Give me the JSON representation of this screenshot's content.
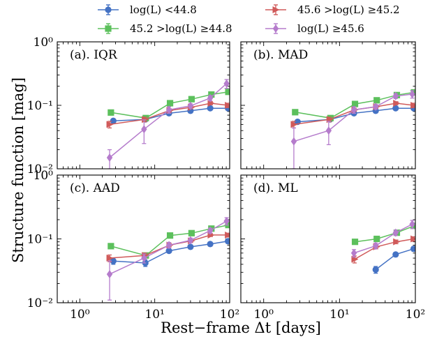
{
  "figure": {
    "xlabel": "Rest−frame Δt [days]",
    "ylabel": "Structure function [mag]"
  },
  "legend": [
    {
      "label": "log(L) <44.8",
      "color": "#4472c4",
      "marker": "circle"
    },
    {
      "label": "45.6 >log(L) ≥45.2",
      "color": "#d05a5a",
      "marker": "triangle-right"
    },
    {
      "label": "45.2 >log(L) ≥44.8",
      "color": "#5cc05c",
      "marker": "square"
    },
    {
      "label": "log(L) ≥45.6",
      "color": "#b57ccc",
      "marker": "diamond"
    }
  ],
  "axes": {
    "x_ticks": [
      "10⁰",
      "10¹",
      "10²"
    ],
    "y_ticks": [
      "10⁰",
      "10⁻¹",
      "10⁻²"
    ]
  },
  "chart_data": [
    {
      "type": "line",
      "panel": "(a). IQR",
      "x_scale": "log",
      "y_scale": "log",
      "xlim": [
        0.5,
        100
      ],
      "ylim": [
        0.01,
        1
      ],
      "series": [
        {
          "name": "log(L) <44.8",
          "x": [
            2.8,
            7.5,
            15.5,
            30,
            55,
            95
          ],
          "y": [
            0.057,
            0.06,
            0.075,
            0.082,
            0.09,
            0.09
          ],
          "err": [
            0.004,
            0.004,
            0.004,
            0.004,
            0.004,
            0.006
          ]
        },
        {
          "name": "45.2 >log(L) ≥44.8",
          "x": [
            2.6,
            7.6,
            16,
            31,
            57,
            96
          ],
          "y": [
            0.077,
            0.063,
            0.108,
            0.125,
            0.148,
            0.163
          ],
          "err": [
            0.004,
            0.004,
            0.005,
            0.005,
            0.007,
            0.01
          ]
        },
        {
          "name": "45.6 >log(L) ≥45.2",
          "x": [
            2.5,
            7.4,
            15.8,
            30.5,
            56,
            95
          ],
          "y": [
            0.05,
            0.06,
            0.083,
            0.093,
            0.108,
            0.1
          ],
          "err": [
            0.006,
            0.005,
            0.005,
            0.005,
            0.006,
            0.008
          ]
        },
        {
          "name": "log(L) ≥45.6",
          "x": [
            2.5,
            7.2,
            15.5,
            30,
            55,
            91
          ],
          "y": [
            0.015,
            0.042,
            0.085,
            0.098,
            0.13,
            0.22
          ],
          "err": [
            0.005,
            0.017,
            0.01,
            0.008,
            0.012,
            0.035
          ]
        }
      ]
    },
    {
      "type": "line",
      "panel": "(b). MAD",
      "x_scale": "log",
      "y_scale": "log",
      "xlim": [
        0.5,
        100
      ],
      "ylim": [
        0.01,
        1
      ],
      "series": [
        {
          "name": "log(L) <44.8",
          "x": [
            2.8,
            7.5,
            15.5,
            30,
            55,
            95
          ],
          "y": [
            0.055,
            0.06,
            0.075,
            0.082,
            0.09,
            0.09
          ],
          "err": [
            0.004,
            0.004,
            0.004,
            0.004,
            0.004,
            0.006
          ]
        },
        {
          "name": "45.2 >log(L) ≥44.8",
          "x": [
            2.6,
            7.6,
            16,
            31,
            57,
            96
          ],
          "y": [
            0.078,
            0.063,
            0.105,
            0.12,
            0.145,
            0.16
          ],
          "err": [
            0.004,
            0.004,
            0.005,
            0.005,
            0.007,
            0.01
          ]
        },
        {
          "name": "45.6 >log(L) ≥45.2",
          "x": [
            2.5,
            7.4,
            15.8,
            30.5,
            56,
            95
          ],
          "y": [
            0.05,
            0.06,
            0.085,
            0.095,
            0.108,
            0.1
          ],
          "err": [
            0.006,
            0.005,
            0.005,
            0.005,
            0.006,
            0.008
          ]
        },
        {
          "name": "log(L) ≥45.6",
          "x": [
            2.5,
            7.2,
            15.5,
            30,
            55,
            91
          ],
          "y": [
            0.027,
            0.04,
            0.085,
            0.095,
            0.14,
            0.15
          ],
          "err": [
            0.017,
            0.016,
            0.01,
            0.008,
            0.012,
            0.02
          ]
        }
      ]
    },
    {
      "type": "line",
      "panel": "(c). AAD",
      "x_scale": "log",
      "y_scale": "log",
      "xlim": [
        0.5,
        100
      ],
      "ylim": [
        0.01,
        1
      ],
      "series": [
        {
          "name": "log(L) <44.8",
          "x": [
            2.8,
            7.5,
            15.5,
            30,
            55,
            95
          ],
          "y": [
            0.045,
            0.042,
            0.065,
            0.075,
            0.083,
            0.092
          ],
          "err": [
            0.005,
            0.005,
            0.004,
            0.004,
            0.004,
            0.006
          ]
        },
        {
          "name": "45.2 >log(L) ≥44.8",
          "x": [
            2.6,
            7.6,
            16,
            31,
            57,
            96
          ],
          "y": [
            0.077,
            0.055,
            0.113,
            0.123,
            0.145,
            0.165
          ],
          "err": [
            0.004,
            0.004,
            0.005,
            0.005,
            0.007,
            0.01
          ]
        },
        {
          "name": "45.6 >log(L) ≥45.2",
          "x": [
            2.5,
            7.4,
            15.8,
            30.5,
            56,
            95
          ],
          "y": [
            0.05,
            0.055,
            0.08,
            0.093,
            0.115,
            0.115
          ],
          "err": [
            0.006,
            0.005,
            0.005,
            0.005,
            0.006,
            0.008
          ]
        },
        {
          "name": "log(L) ≥45.6",
          "x": [
            2.5,
            7.2,
            15.5,
            30,
            55,
            91
          ],
          "y": [
            0.028,
            0.05,
            0.08,
            0.095,
            0.135,
            0.19
          ],
          "err": [
            0.017,
            0.008,
            0.008,
            0.008,
            0.012,
            0.025
          ]
        }
      ]
    },
    {
      "type": "line",
      "panel": "(d). ML",
      "x_scale": "log",
      "y_scale": "log",
      "xlim": [
        0.5,
        100
      ],
      "ylim": [
        0.01,
        1
      ],
      "series": [
        {
          "name": "log(L) <44.8",
          "x": [
            30,
            55,
            95
          ],
          "y": [
            0.033,
            0.057,
            0.07
          ],
          "err": [
            0.004,
            0.004,
            0.006
          ]
        },
        {
          "name": "45.2 >log(L) ≥44.8",
          "x": [
            16,
            31,
            57,
            96
          ],
          "y": [
            0.09,
            0.1,
            0.125,
            0.16
          ],
          "err": [
            0.005,
            0.005,
            0.007,
            0.01
          ]
        },
        {
          "name": "45.6 >log(L) ≥45.2",
          "x": [
            15.8,
            30.5,
            56,
            95
          ],
          "y": [
            0.048,
            0.075,
            0.09,
            0.1
          ],
          "err": [
            0.006,
            0.005,
            0.006,
            0.008
          ]
        },
        {
          "name": "log(L) ≥45.6",
          "x": [
            15.5,
            30,
            55,
            91
          ],
          "y": [
            0.06,
            0.078,
            0.125,
            0.17
          ],
          "err": [
            0.008,
            0.008,
            0.012,
            0.025
          ]
        }
      ]
    }
  ]
}
